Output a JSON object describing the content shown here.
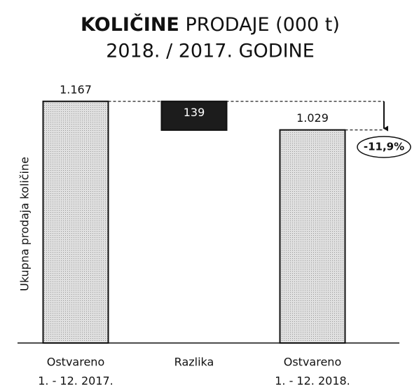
{
  "chart_data": {
    "type": "waterfall",
    "title_bold": "KOLIČINE",
    "title": "PRODAJE (000 t)",
    "subtitle": "2018. / 2017. GODINE",
    "y_label": "Ukupna prodaja količine",
    "categories": [
      [
        "Ostvareno",
        "1. - 12. 2017."
      ],
      "Razlika",
      [
        "Ostvareno",
        "1. - 12. 2018."
      ]
    ],
    "values": [
      1167,
      139,
      1029
    ],
    "value_labels": [
      "1.167",
      "139",
      "1.029"
    ],
    "annotation": "-11,9%",
    "colors": [
      "#d2d2d2",
      "#1c1c1c",
      "#d2d2d2"
    ],
    "ylim": [
      0,
      1200
    ]
  }
}
